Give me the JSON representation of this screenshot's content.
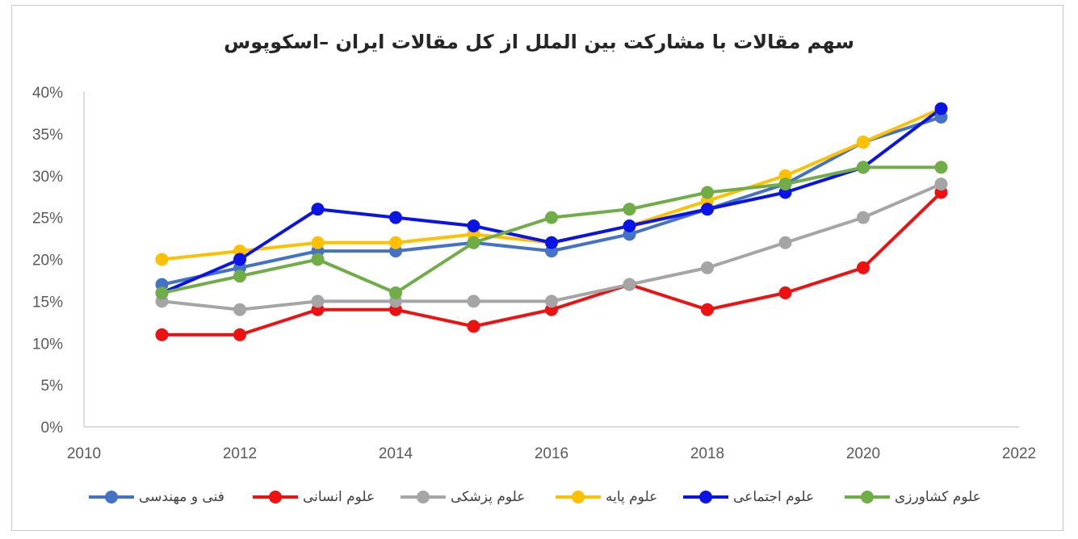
{
  "chart_data": {
    "type": "line",
    "title": "سهم مقالات با مشارکت بین الملل از کل مقالات ایران –اسکوپوس",
    "x": [
      2011,
      2012,
      2013,
      2014,
      2015,
      2016,
      2017,
      2018,
      2019,
      2020,
      2021
    ],
    "xlim": [
      2010,
      2022
    ],
    "xticks": [
      "2010",
      "2012",
      "2014",
      "2016",
      "2018",
      "2020",
      "2022"
    ],
    "ylim": [
      0,
      40
    ],
    "yticks": [
      "0%",
      "5%",
      "10%",
      "15%",
      "20%",
      "25%",
      "30%",
      "35%",
      "40%"
    ],
    "grid": false,
    "legend_position": "bottom",
    "series": [
      {
        "name": "فنی و مهندسی",
        "color": "#4472C4",
        "values": [
          17,
          19,
          21,
          21,
          22,
          21,
          23,
          26,
          29,
          34,
          37
        ]
      },
      {
        "name": "علوم انسانی",
        "color": "#EE1111",
        "values": [
          11,
          11,
          14,
          14,
          12,
          14,
          17,
          14,
          16,
          19,
          28
        ]
      },
      {
        "name": "علوم پزشکی",
        "color": "#A5A5A5",
        "values": [
          15,
          14,
          15,
          15,
          15,
          15,
          17,
          19,
          22,
          25,
          29
        ]
      },
      {
        "name": "علوم پایه",
        "color": "#FFC000",
        "values": [
          20,
          21,
          22,
          22,
          23,
          22,
          24,
          27,
          30,
          34,
          38
        ]
      },
      {
        "name": "علوم اجتماعی",
        "color": "#0A14E6",
        "values": [
          16,
          20,
          26,
          25,
          24,
          22,
          24,
          26,
          28,
          31,
          38
        ]
      },
      {
        "name": "علوم کشاورزی",
        "color": "#70AD47",
        "values": [
          16,
          18,
          20,
          16,
          22,
          25,
          26,
          28,
          29,
          31,
          31
        ]
      }
    ]
  }
}
